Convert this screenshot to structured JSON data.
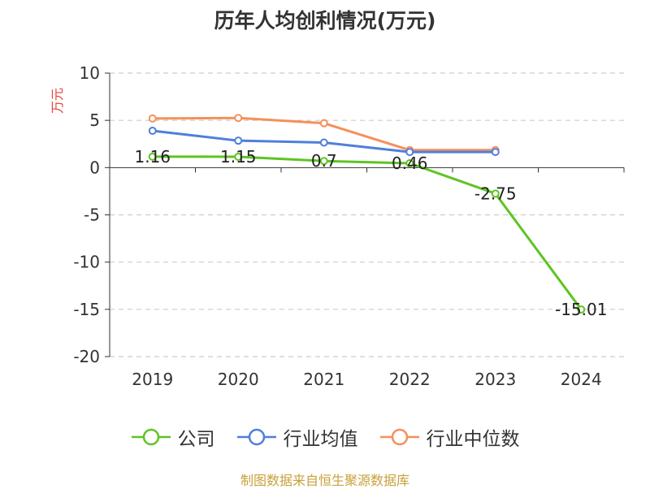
{
  "chart_data": {
    "type": "line",
    "title": "历年人均创利情况(万元)",
    "ylabel": "万元",
    "xlabel": "",
    "categories": [
      "2019",
      "2020",
      "2021",
      "2022",
      "2023",
      "2024"
    ],
    "ylim": [
      -20,
      10
    ],
    "yticks": [
      10,
      5,
      0,
      -5,
      -10,
      -15,
      -20
    ],
    "grid": true,
    "legend_position": "bottom",
    "series": [
      {
        "name": "公司",
        "color": "#5ec422",
        "values": [
          1.16,
          1.15,
          0.7,
          0.46,
          -2.75,
          -15.01
        ],
        "labels": [
          "1.16",
          "1.15",
          "0.7",
          "0.46",
          "-2.75",
          "-15.01"
        ]
      },
      {
        "name": "行业均值",
        "color": "#4f7fdb",
        "values": [
          3.9,
          2.85,
          2.65,
          1.65,
          1.65,
          null
        ]
      },
      {
        "name": "行业中位数",
        "color": "#f5905a",
        "values": [
          5.2,
          5.25,
          4.7,
          1.85,
          1.85,
          null
        ]
      }
    ]
  },
  "source": "制图数据来自恒生聚源数据库"
}
